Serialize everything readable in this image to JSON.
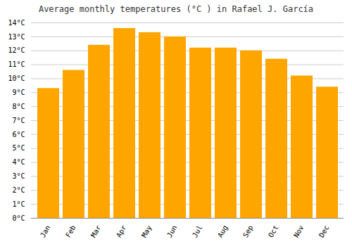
{
  "chart_data": {
    "type": "bar",
    "title": "Average monthly temperatures (°C ) in Rafael J. García",
    "categories": [
      "Jan",
      "Feb",
      "Mar",
      "Apr",
      "May",
      "Jun",
      "Jul",
      "Aug",
      "Sep",
      "Oct",
      "Nov",
      "Dec"
    ],
    "values": [
      9.3,
      10.6,
      12.4,
      13.6,
      13.3,
      13.0,
      12.2,
      12.2,
      12.0,
      11.4,
      10.2,
      9.4
    ],
    "color": "#FFA500",
    "ylim": [
      0,
      14
    ],
    "yticks": [
      {
        "value": 0,
        "label": "0°C"
      },
      {
        "value": 1,
        "label": "1°C"
      },
      {
        "value": 2,
        "label": "2°C"
      },
      {
        "value": 3,
        "label": "3°C"
      },
      {
        "value": 4,
        "label": "4°C"
      },
      {
        "value": 5,
        "label": "5°C"
      },
      {
        "value": 6,
        "label": "6°C"
      },
      {
        "value": 7,
        "label": "7°C"
      },
      {
        "value": 8,
        "label": "8°C"
      },
      {
        "value": 9,
        "label": "9°C"
      },
      {
        "value": 10,
        "label": "10°C"
      },
      {
        "value": 11,
        "label": "11°C"
      },
      {
        "value": 12,
        "label": "12°C"
      },
      {
        "value": 13,
        "label": "13°C"
      },
      {
        "value": 14,
        "label": "14°C"
      }
    ],
    "grid": true
  }
}
